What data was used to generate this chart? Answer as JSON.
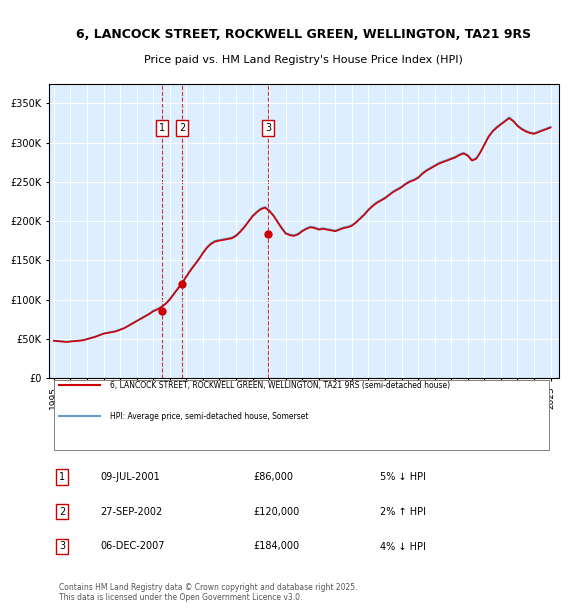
{
  "title_line1": "6, LANCOCK STREET, ROCKWELL GREEN, WELLINGTON, TA21 9RS",
  "title_line2": "Price paid vs. HM Land Registry's House Price Index (HPI)",
  "ylabel_ticks": [
    "£0",
    "£50K",
    "£100K",
    "£150K",
    "£200K",
    "£250K",
    "£300K",
    "£350K"
  ],
  "ytick_values": [
    0,
    50000,
    100000,
    150000,
    200000,
    250000,
    300000,
    350000
  ],
  "ylim": [
    0,
    375000
  ],
  "xlim_start": 1995.0,
  "xlim_end": 2025.5,
  "background_color": "#ddeeff",
  "plot_bg_color": "#ddeeff",
  "hpi_line_color": "#6699cc",
  "price_line_color": "#cc0000",
  "sale_marker_color": "#cc0000",
  "dashed_line_color": "#cc0000",
  "legend_items": [
    "6, LANCOCK STREET, ROCKWELL GREEN, WELLINGTON, TA21 9RS (semi-detached house)",
    "HPI: Average price, semi-detached house, Somerset"
  ],
  "transactions": [
    {
      "num": 1,
      "date": "09-JUL-2001",
      "price": 86000,
      "pct": "5%",
      "dir": "↓",
      "year_dec": 2001.52
    },
    {
      "num": 2,
      "date": "27-SEP-2002",
      "price": 120000,
      "pct": "2%",
      "dir": "↑",
      "year_dec": 2002.74
    },
    {
      "num": 3,
      "date": "06-DEC-2007",
      "price": 184000,
      "pct": "4%",
      "dir": "↓",
      "year_dec": 2007.93
    }
  ],
  "footnote": "Contains HM Land Registry data © Crown copyright and database right 2025.\nThis data is licensed under the Open Government Licence v3.0.",
  "hpi_data": {
    "years": [
      1995.0,
      1995.25,
      1995.5,
      1995.75,
      1996.0,
      1996.25,
      1996.5,
      1996.75,
      1997.0,
      1997.25,
      1997.5,
      1997.75,
      1998.0,
      1998.25,
      1998.5,
      1998.75,
      1999.0,
      1999.25,
      1999.5,
      1999.75,
      2000.0,
      2000.25,
      2000.5,
      2000.75,
      2001.0,
      2001.25,
      2001.5,
      2001.75,
      2002.0,
      2002.25,
      2002.5,
      2002.75,
      2003.0,
      2003.25,
      2003.5,
      2003.75,
      2004.0,
      2004.25,
      2004.5,
      2004.75,
      2005.0,
      2005.25,
      2005.5,
      2005.75,
      2006.0,
      2006.25,
      2006.5,
      2006.75,
      2007.0,
      2007.25,
      2007.5,
      2007.75,
      2008.0,
      2008.25,
      2008.5,
      2008.75,
      2009.0,
      2009.25,
      2009.5,
      2009.75,
      2010.0,
      2010.25,
      2010.5,
      2010.75,
      2011.0,
      2011.25,
      2011.5,
      2011.75,
      2012.0,
      2012.25,
      2012.5,
      2012.75,
      2013.0,
      2013.25,
      2013.5,
      2013.75,
      2014.0,
      2014.25,
      2014.5,
      2014.75,
      2015.0,
      2015.25,
      2015.5,
      2015.75,
      2016.0,
      2016.25,
      2016.5,
      2016.75,
      2017.0,
      2017.25,
      2017.5,
      2017.75,
      2018.0,
      2018.25,
      2018.5,
      2018.75,
      2019.0,
      2019.25,
      2019.5,
      2019.75,
      2020.0,
      2020.25,
      2020.5,
      2020.75,
      2021.0,
      2021.25,
      2021.5,
      2021.75,
      2022.0,
      2022.25,
      2022.5,
      2022.75,
      2023.0,
      2023.25,
      2023.5,
      2023.75,
      2024.0,
      2024.25,
      2024.5,
      2024.75,
      2025.0
    ],
    "values": [
      48000,
      47500,
      47000,
      46500,
      47000,
      47500,
      48000,
      48500,
      50000,
      51500,
      53000,
      55000,
      57000,
      58000,
      59000,
      60000,
      62000,
      64000,
      67000,
      70000,
      73000,
      76000,
      79000,
      82000,
      86000,
      88000,
      91000,
      95000,
      101000,
      108000,
      115000,
      122000,
      130000,
      138000,
      145000,
      152000,
      160000,
      167000,
      172000,
      175000,
      176000,
      177000,
      178000,
      179000,
      182000,
      187000,
      193000,
      200000,
      207000,
      212000,
      216000,
      218000,
      214000,
      208000,
      200000,
      192000,
      185000,
      183000,
      182000,
      184000,
      188000,
      191000,
      193000,
      192000,
      190000,
      191000,
      190000,
      189000,
      188000,
      190000,
      192000,
      193000,
      195000,
      199000,
      204000,
      209000,
      215000,
      220000,
      224000,
      227000,
      230000,
      234000,
      238000,
      241000,
      244000,
      248000,
      251000,
      253000,
      256000,
      261000,
      265000,
      268000,
      271000,
      274000,
      276000,
      278000,
      280000,
      282000,
      285000,
      287000,
      284000,
      278000,
      280000,
      288000,
      298000,
      308000,
      315000,
      320000,
      324000,
      328000,
      332000,
      328000,
      322000,
      318000,
      315000,
      313000,
      312000,
      314000,
      316000,
      318000,
      320000
    ]
  },
  "price_data": {
    "years": [
      1995.0,
      1995.25,
      1995.5,
      1995.75,
      1996.0,
      1996.25,
      1996.5,
      1996.75,
      1997.0,
      1997.25,
      1997.5,
      1997.75,
      1998.0,
      1998.25,
      1998.5,
      1998.75,
      1999.0,
      1999.25,
      1999.5,
      1999.75,
      2000.0,
      2000.25,
      2000.5,
      2000.75,
      2001.0,
      2001.25,
      2001.5,
      2001.75,
      2002.0,
      2002.25,
      2002.5,
      2002.75,
      2003.0,
      2003.25,
      2003.5,
      2003.75,
      2004.0,
      2004.25,
      2004.5,
      2004.75,
      2005.0,
      2005.25,
      2005.5,
      2005.75,
      2006.0,
      2006.25,
      2006.5,
      2006.75,
      2007.0,
      2007.25,
      2007.5,
      2007.75,
      2008.0,
      2008.25,
      2008.5,
      2008.75,
      2009.0,
      2009.25,
      2009.5,
      2009.75,
      2010.0,
      2010.25,
      2010.5,
      2010.75,
      2011.0,
      2011.25,
      2011.5,
      2011.75,
      2012.0,
      2012.25,
      2012.5,
      2012.75,
      2013.0,
      2013.25,
      2013.5,
      2013.75,
      2014.0,
      2014.25,
      2014.5,
      2014.75,
      2015.0,
      2015.25,
      2015.5,
      2015.75,
      2016.0,
      2016.25,
      2016.5,
      2016.75,
      2017.0,
      2017.25,
      2017.5,
      2017.75,
      2018.0,
      2018.25,
      2018.5,
      2018.75,
      2019.0,
      2019.25,
      2019.5,
      2019.75,
      2020.0,
      2020.25,
      2020.5,
      2020.75,
      2021.0,
      2021.25,
      2021.5,
      2021.75,
      2022.0,
      2022.25,
      2022.5,
      2022.75,
      2023.0,
      2023.25,
      2023.5,
      2023.75,
      2024.0,
      2024.25,
      2024.5,
      2024.75,
      2025.0
    ],
    "values": [
      47500,
      47000,
      46500,
      46000,
      46500,
      47000,
      47500,
      48000,
      49500,
      51000,
      52500,
      54500,
      56500,
      57500,
      58500,
      59500,
      61500,
      63500,
      66500,
      69500,
      72500,
      75500,
      78500,
      81500,
      85000,
      87500,
      90500,
      94500,
      100000,
      107000,
      114000,
      121000,
      129000,
      137000,
      144000,
      151000,
      159000,
      166000,
      171000,
      174000,
      175000,
      176000,
      177000,
      178000,
      181000,
      186000,
      192000,
      199000,
      206000,
      211000,
      215000,
      217000,
      213000,
      207000,
      199000,
      191000,
      184000,
      182000,
      181000,
      183000,
      187000,
      190000,
      192000,
      191000,
      189000,
      190000,
      189000,
      188000,
      187000,
      189000,
      191000,
      192000,
      194000,
      198000,
      203000,
      208000,
      214000,
      219000,
      223000,
      226000,
      229000,
      233000,
      237000,
      240000,
      243000,
      247000,
      250000,
      252000,
      255000,
      260000,
      264000,
      267000,
      270000,
      273000,
      275000,
      277000,
      279000,
      281000,
      284000,
      286000,
      283000,
      277000,
      279000,
      287000,
      297000,
      307000,
      314000,
      319000,
      323000,
      327000,
      331000,
      327000,
      321000,
      317000,
      314000,
      312000,
      311000,
      313000,
      315000,
      317000,
      319000
    ]
  },
  "xtick_years": [
    1995,
    1996,
    1997,
    1998,
    1999,
    2000,
    2001,
    2002,
    2003,
    2004,
    2005,
    2006,
    2007,
    2008,
    2009,
    2010,
    2011,
    2012,
    2013,
    2014,
    2015,
    2016,
    2017,
    2018,
    2019,
    2020,
    2021,
    2022,
    2023,
    2024,
    2025
  ]
}
